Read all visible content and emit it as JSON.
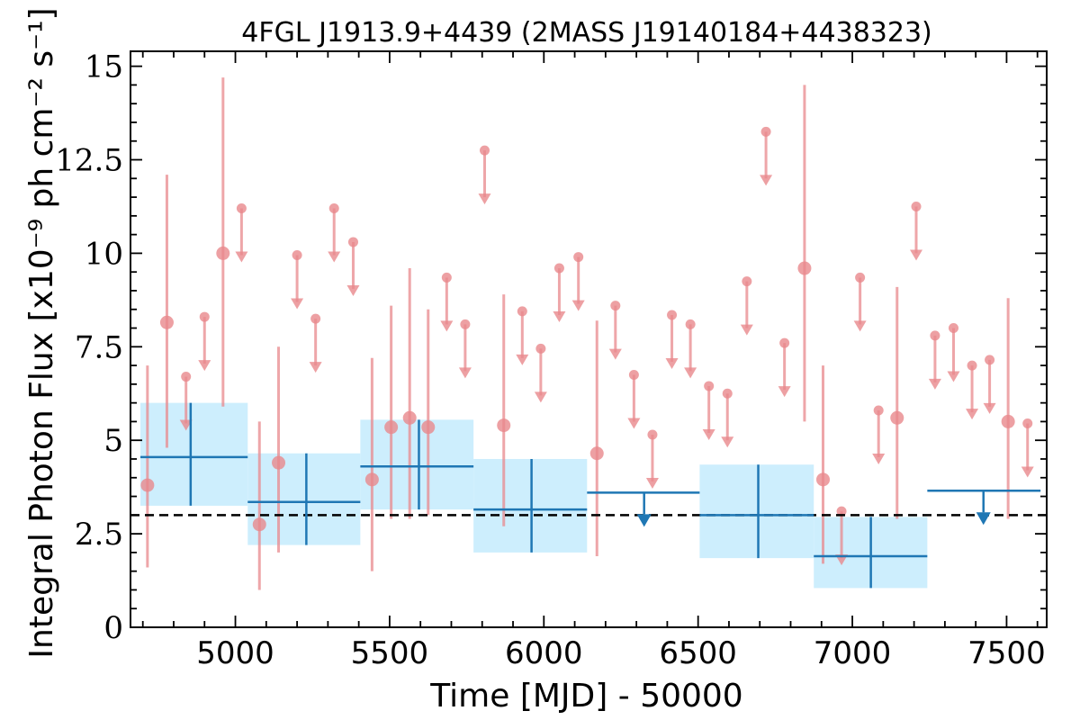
{
  "chart_data": {
    "type": "scatter",
    "title": "4FGL J1913.9+4439 (2MASS J19140184+4438323)",
    "xlabel": "Time [MJD] - 50000",
    "ylabel": "Integral Photon Flux [x10⁻⁹ ph cm⁻² s⁻¹]",
    "xlim": [
      4660,
      7630
    ],
    "ylim": [
      0,
      15.4
    ],
    "xticks": [
      5000,
      5500,
      6000,
      6500,
      7000,
      7500
    ],
    "xtick_labels": [
      "5000",
      "5500",
      "6000",
      "6500",
      "7000",
      "7500"
    ],
    "yticks": [
      0,
      2.5,
      5,
      7.5,
      10,
      12.5,
      15
    ],
    "ytick_labels": [
      "0",
      "2.5",
      "5",
      "7.5",
      "10",
      "12.5",
      "15"
    ],
    "reference_line": {
      "y": 3.0,
      "style": "dashed",
      "color": "#000000"
    },
    "colors": {
      "short_bins": "#e8888c",
      "long_bins": "#1f77b4",
      "band": "#cdeefd"
    },
    "series": [
      {
        "type": "detections",
        "points": [
          {
            "x": 4715,
            "y": 3.8,
            "ylo": 1.6,
            "yhi": 7.0
          },
          {
            "x": 4778,
            "y": 8.15,
            "ylo": 4.8,
            "yhi": 12.1
          },
          {
            "x": 4960,
            "y": 10.0,
            "ylo": 5.9,
            "yhi": 14.7
          },
          {
            "x": 5078,
            "y": 2.75,
            "ylo": 1.0,
            "yhi": 5.5
          },
          {
            "x": 5140,
            "y": 4.4,
            "ylo": 2.0,
            "yhi": 7.5
          },
          {
            "x": 5443,
            "y": 3.95,
            "ylo": 1.5,
            "yhi": 7.2
          },
          {
            "x": 5505,
            "y": 5.35,
            "ylo": 2.9,
            "yhi": 8.6
          },
          {
            "x": 5565,
            "y": 5.6,
            "ylo": 2.9,
            "yhi": 9.6
          },
          {
            "x": 5625,
            "y": 5.35,
            "ylo": 3.0,
            "yhi": 8.5
          },
          {
            "x": 5870,
            "y": 5.4,
            "ylo": 2.7,
            "yhi": 8.9
          },
          {
            "x": 6172,
            "y": 4.65,
            "ylo": 1.9,
            "yhi": 8.2
          },
          {
            "x": 6845,
            "y": 9.6,
            "ylo": 5.5,
            "yhi": 14.5
          },
          {
            "x": 6905,
            "y": 3.95,
            "ylo": 1.7,
            "yhi": 7.0
          },
          {
            "x": 7145,
            "y": 5.6,
            "ylo": 2.9,
            "yhi": 9.1
          },
          {
            "x": 7505,
            "y": 5.5,
            "ylo": 2.9,
            "yhi": 8.8
          }
        ]
      },
      {
        "type": "upper_limits",
        "points": [
          {
            "x": 4840,
            "y": 6.7
          },
          {
            "x": 4900,
            "y": 8.3
          },
          {
            "x": 5020,
            "y": 11.2
          },
          {
            "x": 5200,
            "y": 9.95
          },
          {
            "x": 5260,
            "y": 8.25
          },
          {
            "x": 5320,
            "y": 11.2
          },
          {
            "x": 5382,
            "y": 10.3
          },
          {
            "x": 5685,
            "y": 9.35
          },
          {
            "x": 5745,
            "y": 8.1
          },
          {
            "x": 5808,
            "y": 12.75
          },
          {
            "x": 5930,
            "y": 8.45
          },
          {
            "x": 5990,
            "y": 7.45
          },
          {
            "x": 6050,
            "y": 9.6
          },
          {
            "x": 6112,
            "y": 9.9
          },
          {
            "x": 6232,
            "y": 8.6
          },
          {
            "x": 6292,
            "y": 6.75
          },
          {
            "x": 6352,
            "y": 5.15
          },
          {
            "x": 6415,
            "y": 8.35
          },
          {
            "x": 6475,
            "y": 8.1
          },
          {
            "x": 6535,
            "y": 6.45
          },
          {
            "x": 6595,
            "y": 6.25
          },
          {
            "x": 6658,
            "y": 9.25
          },
          {
            "x": 6720,
            "y": 13.25
          },
          {
            "x": 6780,
            "y": 7.6
          },
          {
            "x": 6965,
            "y": 3.1
          },
          {
            "x": 7025,
            "y": 9.35
          },
          {
            "x": 7085,
            "y": 5.8
          },
          {
            "x": 7207,
            "y": 11.25
          },
          {
            "x": 7268,
            "y": 7.8
          },
          {
            "x": 7328,
            "y": 8.0
          },
          {
            "x": 7388,
            "y": 7.0
          },
          {
            "x": 7445,
            "y": 7.15
          },
          {
            "x": 7568,
            "y": 5.45
          }
        ]
      },
      {
        "type": "long_bins",
        "bins": [
          {
            "x0": 4692,
            "x1": 5040,
            "xc": 4855,
            "y": 4.55,
            "ylo": 3.25,
            "yhi": 6.0,
            "ul": false
          },
          {
            "x0": 5040,
            "x1": 5405,
            "xc": 5230,
            "y": 3.35,
            "ylo": 2.2,
            "yhi": 4.65,
            "ul": false
          },
          {
            "x0": 5405,
            "x1": 5772,
            "xc": 5595,
            "y": 4.3,
            "ylo": 3.15,
            "yhi": 5.55,
            "ul": false
          },
          {
            "x0": 5772,
            "x1": 6140,
            "xc": 5960,
            "y": 3.15,
            "ylo": 2.0,
            "yhi": 4.5,
            "ul": false
          },
          {
            "x0": 6140,
            "x1": 6505,
            "xc": 6325,
            "y": 3.6,
            "ul": true
          },
          {
            "x0": 6505,
            "x1": 6875,
            "xc": 6695,
            "y": 3.0,
            "ylo": 1.85,
            "yhi": 4.35,
            "ul": false
          },
          {
            "x0": 6875,
            "x1": 7243,
            "xc": 7060,
            "y": 1.9,
            "ylo": 1.05,
            "yhi": 2.95,
            "ul": false
          },
          {
            "x0": 7243,
            "x1": 7610,
            "xc": 7425,
            "y": 3.65,
            "ul": true
          }
        ]
      }
    ]
  }
}
